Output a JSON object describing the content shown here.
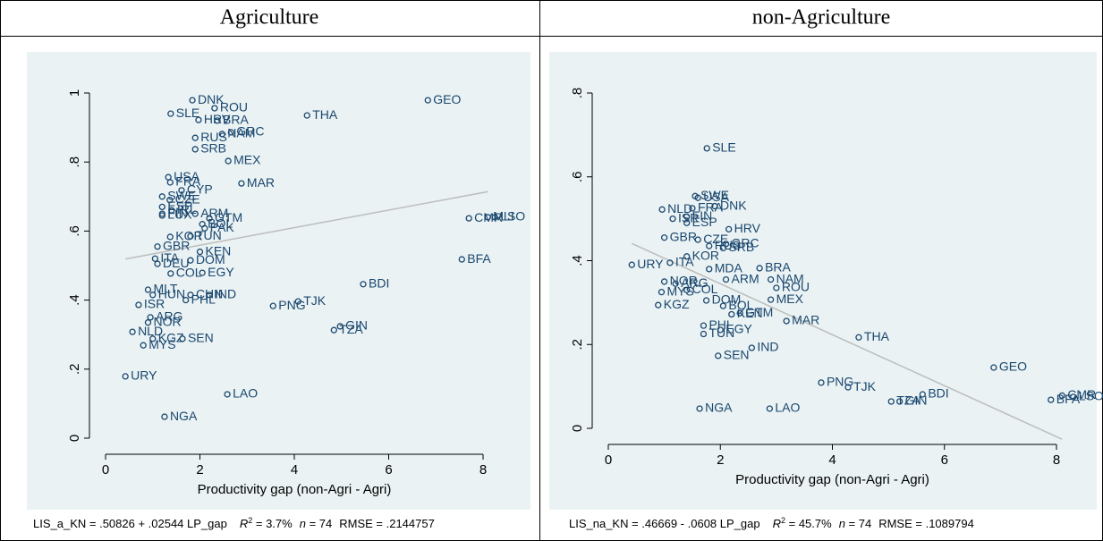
{
  "chart_data": [
    {
      "type": "scatter",
      "title": "Agriculture",
      "x_label": "Productivity gap (non-Agri - Agri)",
      "xlim": [
        0,
        8
      ],
      "ylim": [
        0,
        1
      ],
      "xticks": [
        0,
        2,
        4,
        6,
        8
      ],
      "yticks": [
        0,
        {
          "value": 0.2,
          "label": ".2"
        },
        {
          "value": 0.4,
          "label": ".4"
        },
        {
          "value": 0.6,
          "label": ".6"
        },
        {
          "value": 0.8,
          "label": ".8"
        },
        1
      ],
      "color": "#1a476f",
      "fit_color": "#bdbdbd",
      "point_labels": [
        "GEO",
        "DNK",
        "ROU",
        "THA",
        "SLE",
        "HRV",
        "BRA",
        "NAM",
        "GRC",
        "RUS",
        "SRB",
        "MEX",
        "USA",
        "FRA",
        "MAR",
        "CYP",
        "SWE",
        "CZE",
        "ESP",
        "IRL",
        "FIN",
        "LUX",
        "ARM",
        "GTM",
        "BOL",
        "PAK",
        "CMR",
        "MLI",
        "LSO",
        "KOR",
        "TUN",
        "GBR",
        "KEN",
        "DOM",
        "ITA",
        "DEU",
        "EGY",
        "COL",
        "BFA",
        "BDI",
        "TJK",
        "PNG",
        "GIN",
        "TZA",
        "MLT",
        "HUN",
        "CHN",
        "IND",
        "PHL",
        "ISR",
        "ARG",
        "NOR",
        "NLD",
        "KGZ",
        "SEN",
        "MYS",
        "URY",
        "LAO",
        "NGA"
      ],
      "x": [
        6.83,
        1.84,
        2.31,
        4.27,
        1.38,
        1.97,
        2.37,
        2.47,
        2.66,
        1.9,
        1.9,
        2.6,
        1.33,
        1.37,
        2.88,
        1.61,
        1.2,
        1.36,
        1.2,
        1.4,
        1.2,
        1.2,
        1.9,
        2.2,
        2.05,
        2.1,
        7.7,
        8.1,
        8.25,
        1.37,
        1.8,
        1.1,
        2.0,
        1.8,
        1.05,
        1.1,
        2.05,
        1.38,
        7.55,
        5.46,
        4.08,
        3.55,
        4.97,
        4.84,
        0.9,
        1.0,
        1.8,
        2.2,
        1.7,
        0.7,
        0.95,
        0.9,
        0.57,
        1.0,
        1.63,
        0.8,
        0.42,
        2.58,
        1.25
      ],
      "values": [
        0.979,
        0.979,
        0.956,
        0.935,
        0.94,
        0.922,
        0.92,
        0.881,
        0.886,
        0.87,
        0.837,
        0.803,
        0.756,
        0.741,
        0.738,
        0.718,
        0.7,
        0.69,
        0.67,
        0.66,
        0.65,
        0.645,
        0.65,
        0.637,
        0.62,
        0.608,
        0.637,
        0.64,
        0.64,
        0.583,
        0.585,
        0.555,
        0.54,
        0.515,
        0.52,
        0.505,
        0.479,
        0.477,
        0.518,
        0.446,
        0.396,
        0.383,
        0.324,
        0.313,
        0.43,
        0.415,
        0.415,
        0.415,
        0.4,
        0.386,
        0.35,
        0.335,
        0.308,
        0.288,
        0.288,
        0.269,
        0.179,
        0.127,
        0.062
      ],
      "fit_line": {
        "x": [
          0.42,
          8.1
        ],
        "values": [
          0.519,
          0.714
        ]
      },
      "footnote": [
        "LIS_a_KN = .50826 + .02544 LP_gap",
        "R",
        "2",
        " = 3.7%",
        "n",
        " = 74",
        "RMSE = .2144757"
      ]
    },
    {
      "type": "scatter",
      "title": "non-Agriculture",
      "x_label": "Productivity gap (non-Agri - Agri)",
      "xlim": [
        0,
        8
      ],
      "ylim": [
        0,
        0.8
      ],
      "xticks": [
        0,
        2,
        4,
        6,
        8
      ],
      "yticks": [
        0,
        {
          "value": 0.2,
          "label": ".2"
        },
        {
          "value": 0.4,
          "label": ".4"
        },
        {
          "value": 0.6,
          "label": ".6"
        },
        {
          "value": 0.8,
          "label": ".8"
        }
      ],
      "color": "#1a476f",
      "fit_color": "#bdbdbd",
      "point_labels": [
        "SLE",
        "SWE",
        "USA",
        "DNK",
        "FRA",
        "NLD",
        "FIN",
        "ISR",
        "ESP",
        "HRV",
        "GBR",
        "CZE",
        "GRC",
        "RUS",
        "SRB",
        "KOR",
        "URY",
        "ITA",
        "MDA",
        "BRA",
        "ARM",
        "NAM",
        "NOR",
        "ARG",
        "ROU",
        "COL",
        "MYS",
        "MEX",
        "DOM",
        "KGZ",
        "BOL",
        "KEN",
        "GTM",
        "MAR",
        "PHL",
        "EGY",
        "TUN",
        "IND",
        "SEN",
        "THA",
        "GEO",
        "PNG",
        "TJK",
        "BDI",
        "TZA",
        "GIN",
        "BFA",
        "CMR",
        "LSO",
        "NGA",
        "LAO"
      ],
      "x": [
        1.76,
        1.55,
        1.6,
        1.9,
        1.5,
        0.96,
        1.4,
        1.15,
        1.4,
        2.15,
        1.0,
        1.6,
        2.1,
        1.8,
        2.05,
        1.4,
        0.42,
        1.1,
        1.8,
        2.7,
        2.1,
        2.9,
        1.0,
        1.2,
        3.0,
        1.4,
        0.95,
        2.9,
        1.75,
        0.89,
        2.05,
        2.2,
        2.35,
        3.18,
        1.7,
        2.0,
        1.7,
        2.56,
        1.96,
        4.47,
        6.88,
        3.8,
        4.28,
        5.61,
        5.05,
        5.2,
        7.9,
        8.1,
        8.3,
        1.63,
        2.88
      ],
      "values": [
        0.668,
        0.554,
        0.55,
        0.53,
        0.525,
        0.522,
        0.505,
        0.5,
        0.49,
        0.475,
        0.455,
        0.45,
        0.44,
        0.435,
        0.43,
        0.41,
        0.39,
        0.395,
        0.38,
        0.382,
        0.355,
        0.355,
        0.35,
        0.345,
        0.335,
        0.33,
        0.325,
        0.307,
        0.305,
        0.294,
        0.292,
        0.272,
        0.275,
        0.256,
        0.245,
        0.235,
        0.225,
        0.192,
        0.173,
        0.217,
        0.145,
        0.109,
        0.098,
        0.081,
        0.064,
        0.064,
        0.068,
        0.078,
        0.075,
        0.047,
        0.047
      ],
      "fit_line": {
        "x": [
          0.42,
          8.1
        ],
        "values": [
          0.441,
          -0.026
        ]
      },
      "footnote": [
        "LIS_na_KN = .46669 - .0608 LP_gap",
        "R",
        "2",
        " = 45.7%",
        "n",
        " = 74",
        "RMSE = .1089794"
      ]
    }
  ]
}
